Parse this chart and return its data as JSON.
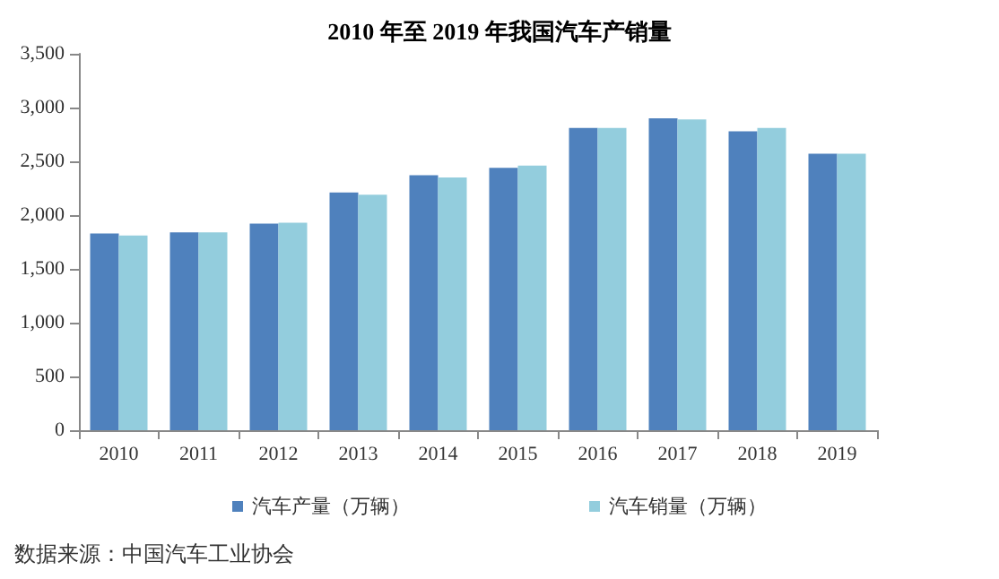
{
  "chart_data": {
    "type": "bar",
    "title": "2010 年至 2019 年我国汽车产销量",
    "categories": [
      "2010",
      "2011",
      "2012",
      "2013",
      "2014",
      "2015",
      "2016",
      "2017",
      "2018",
      "2019"
    ],
    "series": [
      {
        "name": "汽车产量（万辆）",
        "color": "#4f81bd",
        "values": [
          1830,
          1840,
          1920,
          2210,
          2370,
          2440,
          2810,
          2900,
          2780,
          2570
        ]
      },
      {
        "name": "汽车销量（万辆）",
        "color": "#93cddd",
        "values": [
          1810,
          1840,
          1930,
          2190,
          2350,
          2460,
          2810,
          2890,
          2810,
          2570
        ]
      }
    ],
    "ylim": [
      0,
      3500
    ],
    "yticks": [
      0,
      500,
      {
        "value": 1000,
        "label": "1,000"
      },
      {
        "value": 1500,
        "label": "1,500"
      },
      {
        "value": 2000,
        "label": "2,000"
      },
      {
        "value": 2500,
        "label": "2,500"
      },
      {
        "value": 3000,
        "label": "3,000"
      },
      {
        "value": 3500,
        "label": "3,500"
      }
    ],
    "grid": false,
    "legend": "bottom",
    "annotations": [
      "数据来源：中国汽车工业协会"
    ]
  }
}
